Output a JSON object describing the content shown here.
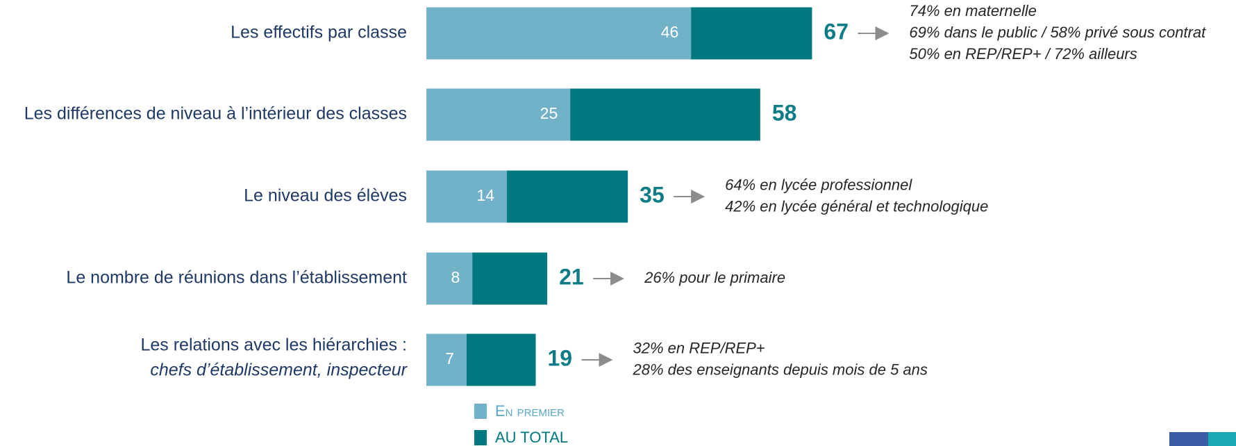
{
  "chart_data": {
    "type": "bar",
    "categories": [
      "Les effectifs par classe",
      "Les différences de niveau à l’intérieur des classes",
      "Le niveau des élèves",
      "Le nombre de réunions dans l’établissement",
      "Les relations avec les hiérarchies :"
    ],
    "category_subtitles": [
      null,
      null,
      null,
      null,
      "chefs d’établissement, inspecteur"
    ],
    "series": [
      {
        "name": "En premier",
        "color": "#72b2c9",
        "values": [
          46,
          25,
          14,
          8,
          7
        ]
      },
      {
        "name": "AU TOTAL",
        "color": "#00787f",
        "values": [
          67,
          58,
          35,
          21,
          19
        ]
      }
    ],
    "annotations": [
      [
        "74% en maternelle",
        "69% dans le public / 58% privé sous contrat",
        "50% en REP/REP+ / 72% ailleurs"
      ],
      [],
      [
        "64% en lycée professionnel",
        "42% en lycée général et technologique"
      ],
      [
        "26% pour le primaire"
      ],
      [
        "32% en REP/REP+",
        "28% des enseignants depuis mois de 5 ans"
      ]
    ]
  }
}
